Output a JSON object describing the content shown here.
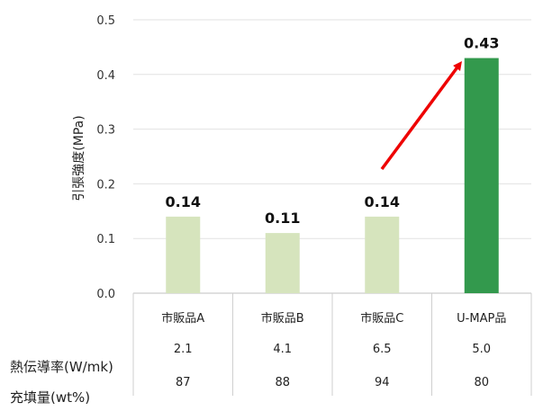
{
  "chart_data": {
    "type": "bar",
    "ylabel": "引張強度(MPa)",
    "ylim": [
      0,
      0.5
    ],
    "yticks": [
      "0.0",
      "0.1",
      "0.2",
      "0.3",
      "0.4",
      "0.5"
    ],
    "grid": true,
    "categories": [
      "市販品A",
      "市販品B",
      "市販品C",
      "U-MAP品"
    ],
    "values": [
      0.14,
      0.11,
      0.14,
      0.43
    ],
    "data_labels": [
      "0.14",
      "0.11",
      "0.14",
      "0.43"
    ],
    "colors": [
      "#d6e4bd",
      "#d6e4bd",
      "#d6e4bd",
      "#33994d"
    ],
    "arrow_color": "#ee0000",
    "table_rows": [
      {
        "title": "熱伝導率(W/mk)",
        "values": [
          "2.1",
          "4.1",
          "6.5",
          "5.0"
        ]
      },
      {
        "title": "充填量(wt%)",
        "values": [
          "87",
          "88",
          "94",
          "80"
        ]
      }
    ]
  }
}
